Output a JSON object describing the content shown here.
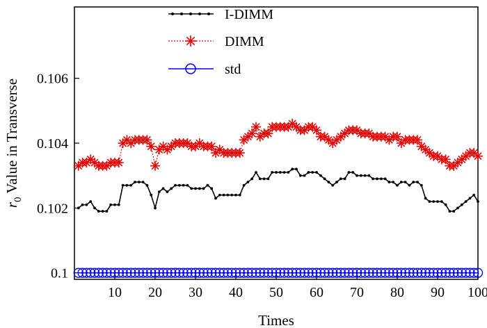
{
  "chart_data": {
    "type": "line",
    "title": "",
    "xlabel": "Times",
    "ylabel_var": "r",
    "ylabel_sub": "0",
    "ylabel_rest": " Value in Transverse",
    "xlim": [
      0,
      100
    ],
    "ylim": [
      0.0998,
      0.1082
    ],
    "x_ticks": [
      10,
      20,
      30,
      40,
      50,
      60,
      70,
      80,
      90,
      100
    ],
    "x_tick_labels": [
      "10",
      "20",
      "30",
      "40",
      "50",
      "60",
      "70",
      "80",
      "90",
      "100"
    ],
    "y_ticks": [
      0.1,
      0.102,
      0.104,
      0.106
    ],
    "y_tick_labels": [
      "0.1",
      "0.102",
      "0.104",
      "0.106"
    ],
    "grid": false,
    "legend_position": "top-center",
    "x": [
      1,
      2,
      3,
      4,
      5,
      6,
      7,
      8,
      9,
      10,
      11,
      12,
      13,
      14,
      15,
      16,
      17,
      18,
      19,
      20,
      21,
      22,
      23,
      24,
      25,
      26,
      27,
      28,
      29,
      30,
      31,
      32,
      33,
      34,
      35,
      36,
      37,
      38,
      39,
      40,
      41,
      42,
      43,
      44,
      45,
      46,
      47,
      48,
      49,
      50,
      51,
      52,
      53,
      54,
      55,
      56,
      57,
      58,
      59,
      60,
      61,
      62,
      63,
      64,
      65,
      66,
      67,
      68,
      69,
      70,
      71,
      72,
      73,
      74,
      75,
      76,
      77,
      78,
      79,
      80,
      81,
      82,
      83,
      84,
      85,
      86,
      87,
      88,
      89,
      90,
      91,
      92,
      93,
      94,
      95,
      96,
      97,
      98,
      99,
      100
    ],
    "series": [
      {
        "name": "I-DIMM",
        "color": "#000000",
        "marker": "dot",
        "line": "solid",
        "values": [
          0.102,
          0.1021,
          0.1021,
          0.1022,
          0.102,
          0.1019,
          0.1019,
          0.1019,
          0.1021,
          0.1021,
          0.1021,
          0.1027,
          0.1027,
          0.1027,
          0.1028,
          0.1028,
          0.1028,
          0.1027,
          0.1024,
          0.102,
          0.1025,
          0.1026,
          0.1025,
          0.1026,
          0.1027,
          0.1027,
          0.1027,
          0.1027,
          0.1026,
          0.1026,
          0.1026,
          0.1026,
          0.1027,
          0.1026,
          0.1023,
          0.1024,
          0.1024,
          0.1024,
          0.1024,
          0.1024,
          0.1024,
          0.1027,
          0.1028,
          0.1029,
          0.1031,
          0.1029,
          0.1029,
          0.1029,
          0.1031,
          0.1031,
          0.1031,
          0.1031,
          0.1031,
          0.1032,
          0.1032,
          0.103,
          0.103,
          0.1031,
          0.1031,
          0.1031,
          0.103,
          0.1029,
          0.1028,
          0.1027,
          0.1028,
          0.1029,
          0.1029,
          0.1031,
          0.1031,
          0.103,
          0.103,
          0.103,
          0.103,
          0.1029,
          0.1029,
          0.1029,
          0.1029,
          0.1028,
          0.1028,
          0.1027,
          0.1028,
          0.1028,
          0.1027,
          0.1028,
          0.1028,
          0.1027,
          0.1023,
          0.1022,
          0.1022,
          0.1022,
          0.1022,
          0.1021,
          0.1019,
          0.1019,
          0.102,
          0.1021,
          0.1022,
          0.1023,
          0.1024,
          0.1022
        ]
      },
      {
        "name": "DIMM",
        "color": "#e60000",
        "marker": "asterisk",
        "line": "dotted",
        "values": [
          0.1033,
          0.1034,
          0.1034,
          0.1035,
          0.1034,
          0.1033,
          0.1033,
          0.1033,
          0.1034,
          0.1034,
          0.1034,
          0.104,
          0.1041,
          0.104,
          0.1041,
          0.1041,
          0.1041,
          0.1041,
          0.1039,
          0.1033,
          0.1038,
          0.1039,
          0.1038,
          0.1039,
          0.104,
          0.104,
          0.104,
          0.104,
          0.1039,
          0.1039,
          0.104,
          0.1039,
          0.1039,
          0.1039,
          0.1037,
          0.1038,
          0.1037,
          0.1037,
          0.1037,
          0.1037,
          0.1037,
          0.1041,
          0.1042,
          0.1043,
          0.1045,
          0.1042,
          0.1043,
          0.1043,
          0.1045,
          0.1045,
          0.1045,
          0.1045,
          0.1045,
          0.1046,
          0.1045,
          0.1044,
          0.1044,
          0.1045,
          0.1045,
          0.1044,
          0.1042,
          0.1042,
          0.1041,
          0.104,
          0.1041,
          0.1042,
          0.1043,
          0.1044,
          0.1044,
          0.1044,
          0.1043,
          0.1043,
          0.1043,
          0.1042,
          0.1042,
          0.1042,
          0.1042,
          0.1041,
          0.1042,
          0.1042,
          0.104,
          0.1041,
          0.1041,
          0.1041,
          0.1041,
          0.1039,
          0.1038,
          0.1037,
          0.1036,
          0.1036,
          0.1035,
          0.1035,
          0.1033,
          0.1033,
          0.1034,
          0.1035,
          0.1036,
          0.1037,
          0.1037,
          0.1036
        ]
      },
      {
        "name": "std",
        "color": "#0000ff",
        "marker": "circle",
        "line": "solid",
        "constant": 0.1
      }
    ]
  }
}
